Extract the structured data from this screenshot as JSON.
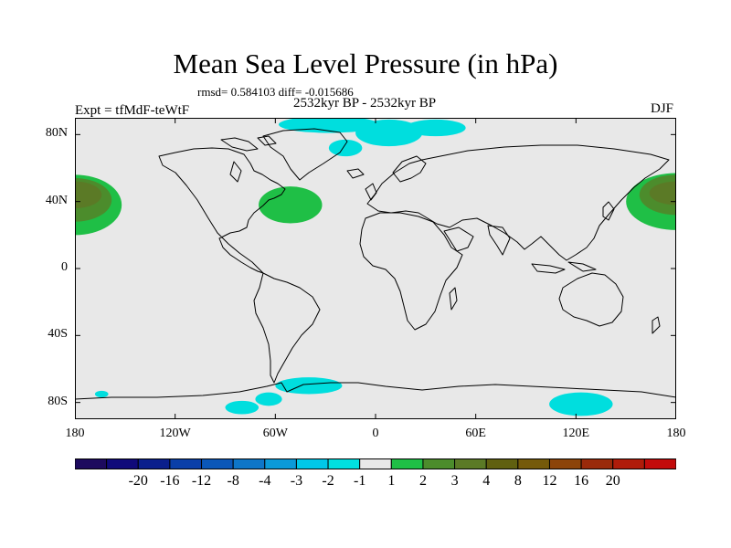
{
  "title": "Mean Sea Level Pressure (in hPa)",
  "stats_text": "rmsd= 0.584103 diff= -0.015686",
  "period_text": "2532kyr BP - 2532kyr BP",
  "experiment_label": "Expt = tfMdF-teWtF",
  "season_label": "DJF",
  "map": {
    "projection": "cylindrical equidistant",
    "lon_range": [
      -180,
      180
    ],
    "lat_range": [
      -90,
      90
    ],
    "background_color": "#e8e8e8",
    "coastline_color": "#000000",
    "y_ticks": [
      {
        "lat": 80,
        "label": "80N"
      },
      {
        "lat": 40,
        "label": "40N"
      },
      {
        "lat": 0,
        "label": "0"
      },
      {
        "lat": -40,
        "label": "40S"
      },
      {
        "lat": -80,
        "label": "80S"
      }
    ],
    "x_ticks": [
      {
        "lon": -180,
        "label": "180"
      },
      {
        "lon": -120,
        "label": "120W"
      },
      {
        "lon": -60,
        "label": "60W"
      },
      {
        "lon": 0,
        "label": "0"
      },
      {
        "lon": 60,
        "label": "60E"
      },
      {
        "lon": 120,
        "label": "120E"
      },
      {
        "lon": 180,
        "label": "180"
      }
    ],
    "anomaly_regions": [
      {
        "name": "n-pacific-west-1",
        "level": "1",
        "color": "#1fbf46",
        "lon": -180,
        "lat": 38,
        "rlon": 28,
        "rlat": 18
      },
      {
        "name": "n-pacific-west-2",
        "level": "2",
        "color": "#4c8c2c",
        "lon": -180,
        "lat": 41,
        "rlon": 22,
        "rlat": 13
      },
      {
        "name": "n-pacific-west-3",
        "level": "3",
        "color": "#5b7a26",
        "lon": -180,
        "lat": 44,
        "rlon": 16,
        "rlat": 8
      },
      {
        "name": "n-pacific-east-1",
        "level": "1",
        "color": "#1fbf46",
        "lon": 180,
        "lat": 40,
        "rlon": 30,
        "rlat": 17
      },
      {
        "name": "n-pacific-east-2",
        "level": "2",
        "color": "#4c8c2c",
        "lon": 180,
        "lat": 44,
        "rlon": 22,
        "rlat": 12
      },
      {
        "name": "n-pacific-east-3",
        "level": "3",
        "color": "#5b7a26",
        "lon": 180,
        "lat": 45,
        "rlon": 16,
        "rlat": 7
      },
      {
        "name": "n-atlantic",
        "level": "1",
        "color": "#1fbf46",
        "lon": -51,
        "lat": 38,
        "rlon": 19,
        "rlat": 11
      },
      {
        "name": "arctic-a",
        "level": "-1",
        "color": "#00dede",
        "lon": -28,
        "lat": 86,
        "rlon": 30,
        "rlat": 5
      },
      {
        "name": "arctic-b",
        "level": "-1",
        "color": "#00dede",
        "lon": 8,
        "lat": 81,
        "rlon": 20,
        "rlat": 8
      },
      {
        "name": "greenland-sea",
        "level": "-1",
        "color": "#00dede",
        "lon": -18,
        "lat": 72,
        "rlon": 10,
        "rlat": 5
      },
      {
        "name": "barents",
        "level": "-1",
        "color": "#00dede",
        "lon": 36,
        "lat": 84,
        "rlon": 18,
        "rlat": 5
      },
      {
        "name": "antarctic-weddell",
        "level": "-1",
        "color": "#00dede",
        "lon": -40,
        "lat": -70,
        "rlon": 20,
        "rlat": 5
      },
      {
        "name": "antarctic-ross-a",
        "level": "-1",
        "color": "#00dede",
        "lon": -80,
        "lat": -83,
        "rlon": 10,
        "rlat": 4
      },
      {
        "name": "antarctic-ross-b",
        "level": "-1",
        "color": "#00dede",
        "lon": -64,
        "lat": -78,
        "rlon": 8,
        "rlat": 4
      },
      {
        "name": "antarctic-east",
        "level": "-1",
        "color": "#00dede",
        "lon": 123,
        "lat": -81,
        "rlon": 19,
        "rlat": 7
      },
      {
        "name": "antarctic-small",
        "level": "-1",
        "color": "#00dede",
        "lon": -164,
        "lat": -75,
        "rlon": 4,
        "rlat": 2
      }
    ]
  },
  "colorbar": {
    "colors": [
      "#1d0a5e",
      "#100a7a",
      "#0a1f8c",
      "#0a3fa8",
      "#0b57b8",
      "#0e76c8",
      "#0b9ad8",
      "#00c8e8",
      "#00e0e0",
      "#e8e8e8",
      "#1fbf46",
      "#4c8c2c",
      "#5b7a26",
      "#606010",
      "#755a0a",
      "#8c4409",
      "#9a2a0a",
      "#b01c0a",
      "#c30b0b"
    ],
    "labels": [
      "-20",
      "-16",
      "-12",
      "-8",
      "-4",
      "-3",
      "-2",
      "-1",
      "1",
      "2",
      "3",
      "4",
      "8",
      "12",
      "16",
      "20"
    ]
  }
}
